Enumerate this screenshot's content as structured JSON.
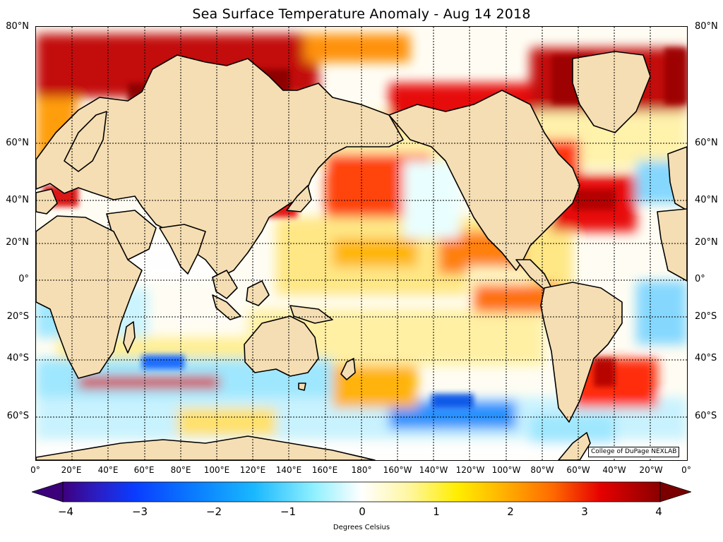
{
  "title": "Sea Surface Temperature Anomaly - Aug 14 2018",
  "map": {
    "projection": "mercator",
    "lon_range": [
      0,
      360
    ],
    "lat_range": [
      -75,
      80
    ],
    "land_color": "#f5deb3",
    "coastline_color": "#000000",
    "grid_style": "dotted",
    "lat_labels": [
      "80°N",
      "60°N",
      "40°N",
      "20°N",
      "0°",
      "20°S",
      "40°S",
      "60°S"
    ],
    "lon_labels": [
      "0°",
      "20°E",
      "40°E",
      "60°E",
      "80°E",
      "100°E",
      "120°E",
      "140°E",
      "160°E",
      "180°",
      "160°W",
      "140°W",
      "120°W",
      "100°W",
      "80°W",
      "60°W",
      "40°W",
      "20°W",
      "0°"
    ]
  },
  "credit": "College of DuPage NEXLAB",
  "colorbar": {
    "min": -4,
    "max": 4,
    "extend": "both",
    "tick_labels": [
      "−4",
      "−3",
      "−2",
      "−1",
      "0",
      "1",
      "2",
      "3",
      "4"
    ],
    "label": "Degrees Celsius",
    "colors": {
      "under": "#3b007a",
      "over": "#7a0000",
      "neutral": "#ffffff"
    }
  }
}
